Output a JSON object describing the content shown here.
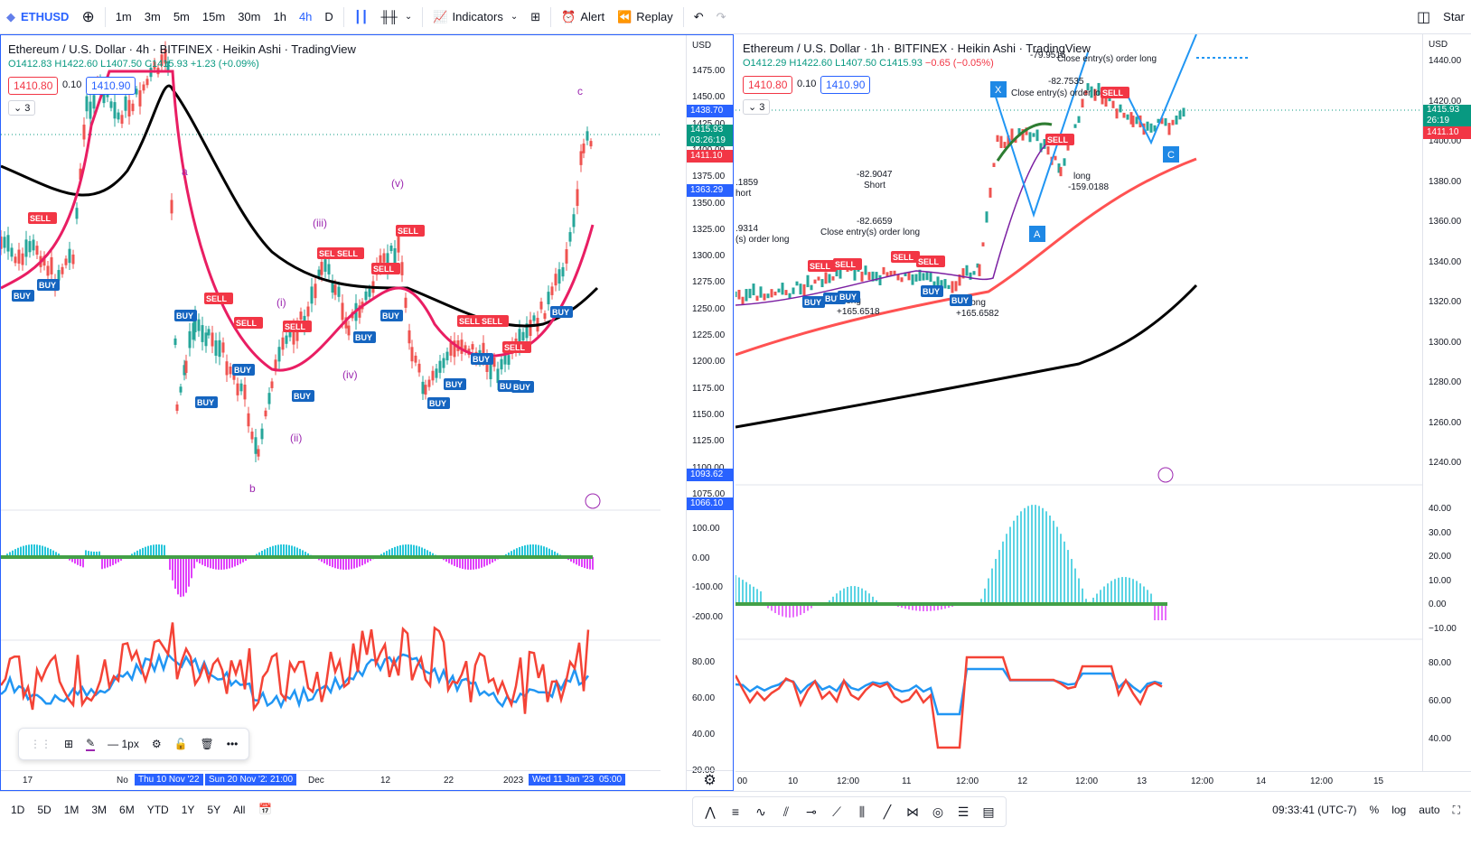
{
  "topbar": {
    "symbol": "ETHUSD",
    "intervals": [
      "1m",
      "3m",
      "5m",
      "15m",
      "30m",
      "1h",
      "4h",
      "D"
    ],
    "active_interval": "4h",
    "indicators_label": "Indicators",
    "alert_label": "Alert",
    "replay_label": "Replay",
    "right_label": "Star"
  },
  "left_chart": {
    "title": "Ethereum / U.S. Dollar · 4h · BITFINEX · Heikin Ashi · TradingView",
    "ohlc": {
      "o": "O1412.83",
      "h": "H1422.60",
      "l": "L1407.50",
      "c": "C1415.93",
      "chg": "+1.23 (+0.09%)"
    },
    "bid": "1410.80",
    "spread": "0.10",
    "ask": "1410.90",
    "collapse_count": "3",
    "currency": "USD",
    "price_ticks": [
      "1475.00",
      "1450.00",
      "1425.00",
      "1400.00",
      "1375.00",
      "1350.00",
      "1325.00",
      "1300.00",
      "1275.00",
      "1250.00",
      "1225.00",
      "1200.00",
      "1175.00",
      "1150.00",
      "1125.00",
      "1100.00",
      "1075.00"
    ],
    "price_labels": [
      {
        "text": "1438.70",
        "color": "#2962ff"
      },
      {
        "text": "1415.93\n03:26:19",
        "color": "#089981"
      },
      {
        "text": "1411.10",
        "color": "#f23645"
      },
      {
        "text": "1363.29",
        "color": "#2962ff"
      },
      {
        "text": "1093.62",
        "color": "#2962ff"
      },
      {
        "text": "1066.10",
        "color": "#2962ff"
      }
    ],
    "osc_ticks": [
      "100.00",
      "0.00",
      "-100.00",
      "-200.00"
    ],
    "rsi_ticks": [
      "80.00",
      "60.00",
      "40.00",
      "20.00"
    ],
    "time_ticks": [
      "17",
      "No",
      "Dec",
      "12",
      "22",
      "2023"
    ],
    "time_highlights": [
      "Thu 10 Nov '22",
      "Sun 20 Nov '22",
      "21:00",
      "Wed 11 Jan '23",
      "05:00"
    ],
    "wave_labels": [
      "(i)",
      "(ii)",
      "(iii)",
      "(iv)",
      "(v)",
      "a",
      "b",
      "c"
    ]
  },
  "right_chart": {
    "title": "Ethereum / U.S. Dollar · 1h · BITFINEX · Heikin Ashi · TradingView",
    "ohlc": {
      "o": "O1412.29",
      "h": "H1422.60",
      "l": "L1407.50",
      "c": "C1415.93",
      "chg": "−0.65 (−0.05%)"
    },
    "bid": "1410.80",
    "spread": "0.10",
    "ask": "1410.90",
    "collapse_count": "3",
    "currency": "USD",
    "price_ticks": [
      "1440.00",
      "1420.00",
      "1400.00",
      "1380.00",
      "1360.00",
      "1340.00",
      "1320.00",
      "1300.00",
      "1280.00",
      "1260.00",
      "1240.00"
    ],
    "price_labels": [
      {
        "text": "1415.93\n26:19",
        "color": "#089981"
      },
      {
        "text": "1411.10",
        "color": "#f23645"
      }
    ],
    "osc_ticks": [
      "40.00",
      "30.00",
      "20.00",
      "10.00",
      "0.00",
      "−10.00"
    ],
    "rsi_ticks": [
      "80.00",
      "60.00",
      "40.00"
    ],
    "time_ticks": [
      "00",
      "10",
      "12:00",
      "11",
      "12:00",
      "12",
      "12:00",
      "13",
      "12:00",
      "14",
      "12:00",
      "15"
    ],
    "annotations": [
      "-82.9047",
      "Short",
      "-82.6659",
      "Close entry(s) order long",
      "-82.7535",
      "Close entry(s) order long",
      "-79.9515",
      "Close entry(s) order long",
      ".1859",
      "hort",
      ".9314",
      "(s) order long",
      "long",
      "+165.6518",
      "long",
      "+165.6582",
      "long",
      "-159.0188"
    ],
    "pattern_labels": [
      "X",
      "A",
      "C"
    ]
  },
  "signals": {
    "buy": "BUY",
    "sell": "SELL"
  },
  "bottombar": {
    "ranges": [
      "1D",
      "5D",
      "1M",
      "3M",
      "6M",
      "YTD",
      "1Y",
      "5Y",
      "All"
    ],
    "time": "09:33:41 (UTC-7)",
    "percent": "%",
    "log": "log",
    "auto": "auto"
  },
  "floatbar": {
    "stroke": "1px"
  }
}
